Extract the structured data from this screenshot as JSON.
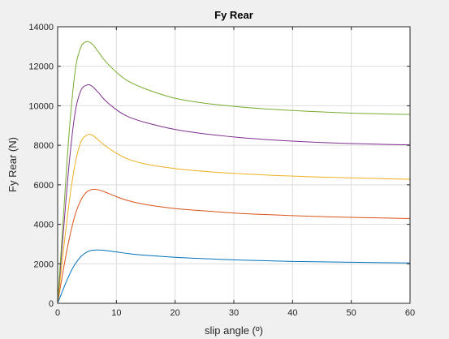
{
  "chart_data": {
    "type": "line",
    "title": "Fy Rear",
    "xlabel": "slip angle (º)",
    "ylabel": "Fy Rear (N)",
    "xlim": [
      0,
      60
    ],
    "ylim": [
      0,
      14000
    ],
    "xticks": [
      0,
      10,
      20,
      30,
      40,
      50,
      60
    ],
    "yticks": [
      0,
      2000,
      4000,
      6000,
      8000,
      10000,
      12000,
      14000
    ],
    "grid": true,
    "legend": "none",
    "series": [
      {
        "color": "#0072BD",
        "x": [
          0,
          1,
          2,
          3,
          4,
          5,
          6,
          7,
          8,
          10,
          12,
          15,
          20,
          25,
          30,
          35,
          40,
          45,
          50,
          55,
          60
        ],
        "y": [
          0,
          750,
          1450,
          2000,
          2380,
          2600,
          2690,
          2700,
          2680,
          2600,
          2520,
          2430,
          2330,
          2260,
          2200,
          2160,
          2120,
          2100,
          2080,
          2060,
          2040
        ]
      },
      {
        "color": "#D95319",
        "x": [
          0,
          1,
          2,
          3,
          4,
          5,
          6,
          7,
          8,
          10,
          12,
          15,
          20,
          25,
          30,
          35,
          40,
          45,
          50,
          55,
          60
        ],
        "y": [
          0,
          1750,
          3300,
          4500,
          5250,
          5650,
          5770,
          5740,
          5640,
          5400,
          5200,
          5000,
          4800,
          4680,
          4570,
          4500,
          4440,
          4390,
          4350,
          4320,
          4290
        ]
      },
      {
        "color": "#EDB120",
        "x": [
          0,
          1,
          2,
          3,
          4,
          5,
          5.5,
          6,
          7,
          8,
          10,
          12,
          15,
          20,
          25,
          30,
          35,
          40,
          45,
          50,
          55,
          60
        ],
        "y": [
          0,
          2700,
          5200,
          7100,
          8200,
          8520,
          8550,
          8500,
          8250,
          8000,
          7600,
          7300,
          7050,
          6820,
          6680,
          6580,
          6500,
          6440,
          6390,
          6350,
          6310,
          6280
        ]
      },
      {
        "color": "#7E2F8E",
        "x": [
          0,
          1,
          2,
          3,
          4,
          5,
          5.5,
          6,
          7,
          8,
          10,
          12,
          15,
          20,
          25,
          30,
          35,
          40,
          45,
          50,
          55,
          60
        ],
        "y": [
          0,
          3700,
          7200,
          9700,
          10800,
          11050,
          11050,
          10950,
          10650,
          10300,
          9800,
          9450,
          9150,
          8800,
          8580,
          8420,
          8300,
          8210,
          8140,
          8090,
          8050,
          8020
        ]
      },
      {
        "color": "#77AC30",
        "x": [
          0,
          1,
          2,
          3,
          4,
          5,
          5.5,
          6,
          7,
          8,
          10,
          12,
          15,
          20,
          25,
          30,
          35,
          40,
          45,
          50,
          55,
          60
        ],
        "y": [
          0,
          4500,
          8800,
          11800,
          13000,
          13250,
          13200,
          13100,
          12700,
          12300,
          11700,
          11250,
          10850,
          10380,
          10130,
          9970,
          9850,
          9760,
          9690,
          9630,
          9590,
          9560
        ]
      }
    ]
  }
}
